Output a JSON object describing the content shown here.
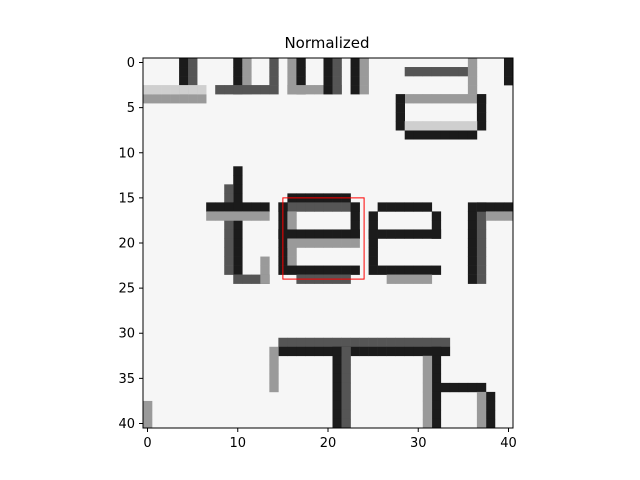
{
  "chart_data": {
    "type": "heatmap",
    "title": "Normalized",
    "colormap": "gray",
    "x_range": [
      -0.5,
      40.5
    ],
    "y_range": [
      -0.5,
      40.5
    ],
    "y_inverted": true,
    "x_ticks": [
      0,
      10,
      20,
      30,
      40
    ],
    "y_ticks": [
      0,
      5,
      10,
      15,
      20,
      25,
      30,
      35,
      40
    ],
    "highlight_box": {
      "x0": 15,
      "x1": 24,
      "y0": 15,
      "y1": 24,
      "color": "#ff0000"
    },
    "visible_text_in_image": "teer"
  }
}
